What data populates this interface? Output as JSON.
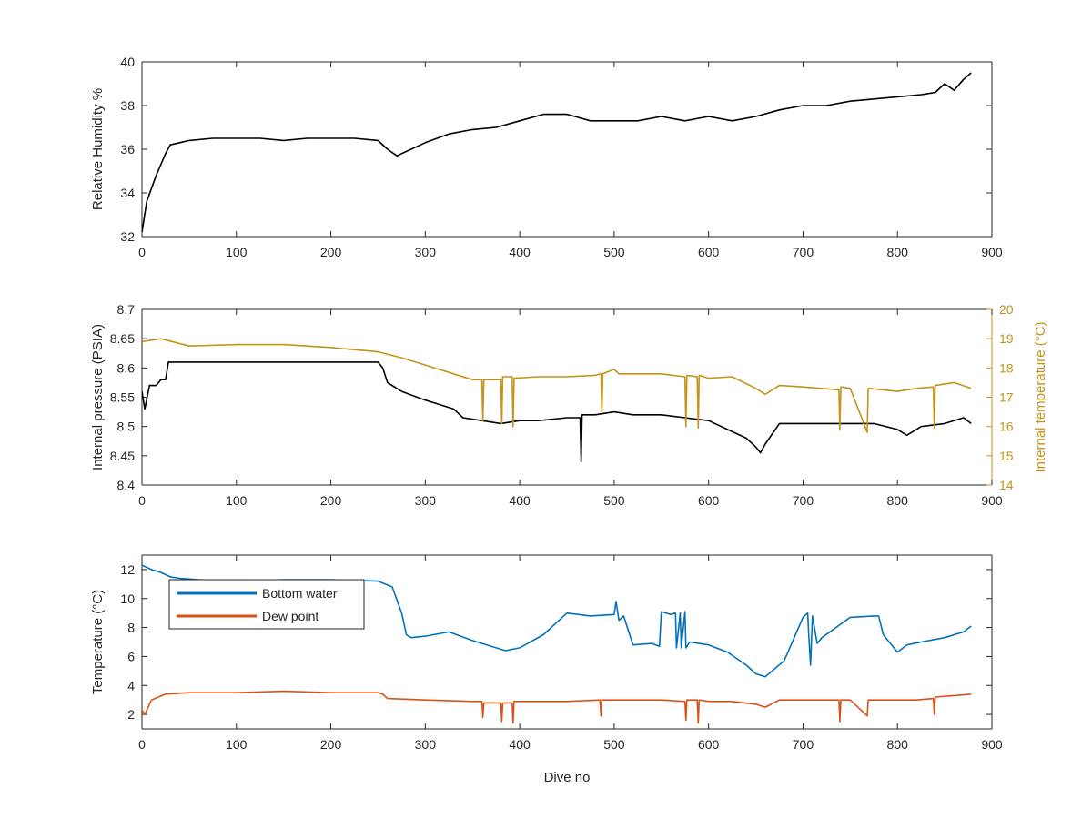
{
  "chart_data": [
    {
      "type": "line",
      "ylabel": "Relative Humidity %",
      "xlim": [
        0,
        900
      ],
      "ylim": [
        32,
        40
      ],
      "xticks": [
        0,
        100,
        200,
        300,
        400,
        500,
        600,
        700,
        800,
        900
      ],
      "yticks": [
        32,
        34,
        36,
        38,
        40
      ],
      "series": [
        {
          "color": "#000000",
          "x": [
            0,
            5,
            10,
            15,
            20,
            25,
            30,
            40,
            50,
            75,
            100,
            125,
            150,
            175,
            200,
            225,
            250,
            260,
            270,
            285,
            300,
            325,
            350,
            375,
            400,
            425,
            450,
            475,
            500,
            525,
            550,
            575,
            600,
            625,
            650,
            675,
            700,
            725,
            750,
            775,
            800,
            825,
            840,
            850,
            860,
            870,
            878
          ],
          "y": [
            32.2,
            33.6,
            34.2,
            34.8,
            35.3,
            35.8,
            36.2,
            36.3,
            36.4,
            36.5,
            36.5,
            36.5,
            36.4,
            36.5,
            36.5,
            36.5,
            36.4,
            36.0,
            35.7,
            36.0,
            36.3,
            36.7,
            36.9,
            37.0,
            37.3,
            37.6,
            37.6,
            37.3,
            37.3,
            37.3,
            37.5,
            37.3,
            37.5,
            37.3,
            37.5,
            37.8,
            38.0,
            38.0,
            38.2,
            38.3,
            38.4,
            38.5,
            38.6,
            39.0,
            38.7,
            39.2,
            39.5
          ]
        }
      ]
    },
    {
      "type": "line",
      "ylabel": "Internal pressure (PSIA)",
      "y2label": "Internal temperature (°C)",
      "xlim": [
        0,
        900
      ],
      "ylim": [
        8.4,
        8.7
      ],
      "y2lim": [
        14,
        20
      ],
      "xticks": [
        0,
        100,
        200,
        300,
        400,
        500,
        600,
        700,
        800,
        900
      ],
      "yticks": [
        8.4,
        8.45,
        8.5,
        8.55,
        8.6,
        8.65,
        8.7
      ],
      "yticklabels": [
        "8.4",
        "8.45",
        "8.5",
        "8.55",
        "8.6",
        "8.65",
        "8.7"
      ],
      "y2ticks": [
        14,
        15,
        16,
        17,
        18,
        19,
        20
      ],
      "series": [
        {
          "axis": "left",
          "color": "#000000",
          "x": [
            0,
            3,
            8,
            15,
            20,
            25,
            28,
            30,
            50,
            100,
            150,
            200,
            250,
            255,
            260,
            275,
            300,
            310,
            330,
            340,
            360,
            380,
            400,
            420,
            450,
            464,
            465,
            466,
            480,
            500,
            520,
            550,
            575,
            600,
            620,
            640,
            650,
            655,
            660,
            675,
            700,
            725,
            750,
            775,
            800,
            810,
            825,
            850,
            870,
            878
          ],
          "y": [
            8.56,
            8.53,
            8.57,
            8.57,
            8.58,
            8.58,
            8.61,
            8.61,
            8.61,
            8.61,
            8.61,
            8.61,
            8.61,
            8.6,
            8.575,
            8.56,
            8.545,
            8.54,
            8.53,
            8.515,
            8.51,
            8.505,
            8.51,
            8.51,
            8.515,
            8.515,
            8.44,
            8.52,
            8.52,
            8.525,
            8.52,
            8.52,
            8.515,
            8.51,
            8.495,
            8.48,
            8.465,
            8.455,
            8.47,
            8.505,
            8.505,
            8.505,
            8.505,
            8.505,
            8.495,
            8.485,
            8.5,
            8.505,
            8.515,
            8.505
          ]
        },
        {
          "axis": "right",
          "color": "#c59317",
          "x": [
            0,
            20,
            50,
            100,
            150,
            200,
            250,
            275,
            300,
            325,
            350,
            360,
            361,
            362,
            380,
            381,
            382,
            392,
            393,
            394,
            420,
            450,
            480,
            486,
            487,
            488,
            500,
            505,
            520,
            550,
            575,
            576,
            577,
            588,
            589,
            590,
            600,
            625,
            650,
            660,
            675,
            700,
            720,
            738,
            739,
            740,
            750,
            768,
            769,
            770,
            800,
            820,
            838,
            839,
            840,
            860,
            878
          ],
          "y": [
            18.9,
            19.0,
            18.75,
            18.8,
            18.8,
            18.7,
            18.55,
            18.35,
            18.1,
            17.85,
            17.6,
            17.6,
            16.2,
            17.6,
            17.6,
            16.1,
            17.7,
            17.7,
            16.0,
            17.65,
            17.7,
            17.7,
            17.75,
            17.8,
            16.5,
            17.8,
            17.95,
            17.8,
            17.8,
            17.8,
            17.7,
            16.0,
            17.75,
            17.7,
            15.95,
            17.75,
            17.65,
            17.7,
            17.3,
            17.1,
            17.4,
            17.35,
            17.3,
            17.25,
            15.9,
            17.35,
            17.3,
            15.8,
            17.3,
            17.3,
            17.2,
            17.3,
            17.35,
            15.95,
            17.4,
            17.5,
            17.3
          ]
        }
      ]
    },
    {
      "type": "line",
      "xlabel": "Dive no",
      "ylabel": "Temperature (°C)",
      "xlim": [
        0,
        900
      ],
      "ylim": [
        1,
        13
      ],
      "xticks": [
        0,
        100,
        200,
        300,
        400,
        500,
        600,
        700,
        800,
        900
      ],
      "yticks": [
        2,
        4,
        6,
        8,
        10,
        12
      ],
      "legend": "top-left",
      "series": [
        {
          "name": "Bottom water",
          "color": "#0072bd",
          "x": [
            0,
            10,
            20,
            30,
            40,
            60,
            100,
            150,
            200,
            250,
            265,
            275,
            280,
            285,
            300,
            325,
            350,
            375,
            385,
            400,
            425,
            450,
            475,
            500,
            502,
            505,
            510,
            520,
            540,
            548,
            550,
            560,
            565,
            566,
            570,
            571,
            575,
            576,
            580,
            600,
            620,
            640,
            650,
            660,
            680,
            700,
            705,
            706,
            708,
            710,
            715,
            720,
            750,
            775,
            780,
            785,
            795,
            800,
            810,
            825,
            850,
            870,
            878
          ],
          "y": [
            12.3,
            12.0,
            11.8,
            11.5,
            11.4,
            11.3,
            11.2,
            11.3,
            11.3,
            11.2,
            10.8,
            9.0,
            7.5,
            7.3,
            7.4,
            7.7,
            7.1,
            6.6,
            6.4,
            6.6,
            7.5,
            9.0,
            8.8,
            8.9,
            9.8,
            8.5,
            8.8,
            6.8,
            6.9,
            6.7,
            9.1,
            8.9,
            9.0,
            6.6,
            9.0,
            6.6,
            9.1,
            6.6,
            7.0,
            6.8,
            6.3,
            5.4,
            4.8,
            4.6,
            5.7,
            8.7,
            9.0,
            7.5,
            5.4,
            8.8,
            6.9,
            7.3,
            8.7,
            8.8,
            8.8,
            7.5,
            6.7,
            6.3,
            6.8,
            7.0,
            7.3,
            7.7,
            8.1
          ]
        },
        {
          "name": "Dew point",
          "color": "#d95319",
          "x": [
            0,
            3,
            10,
            25,
            50,
            100,
            150,
            200,
            250,
            255,
            260,
            300,
            350,
            360,
            361,
            362,
            380,
            381,
            382,
            392,
            393,
            394,
            420,
            450,
            485,
            486,
            487,
            500,
            550,
            575,
            576,
            577,
            588,
            589,
            590,
            600,
            625,
            650,
            660,
            675,
            700,
            725,
            738,
            739,
            740,
            750,
            768,
            769,
            770,
            800,
            820,
            838,
            839,
            840,
            860,
            878
          ],
          "y": [
            2.3,
            2.0,
            3.0,
            3.4,
            3.5,
            3.5,
            3.6,
            3.5,
            3.5,
            3.4,
            3.1,
            3.0,
            2.9,
            2.9,
            1.8,
            2.8,
            2.8,
            1.5,
            2.8,
            2.8,
            1.4,
            2.9,
            2.9,
            2.9,
            3.0,
            1.9,
            3.0,
            3.0,
            3.0,
            2.9,
            1.6,
            3.0,
            3.0,
            1.4,
            3.0,
            2.9,
            2.9,
            2.7,
            2.5,
            3.0,
            3.0,
            3.0,
            3.0,
            1.5,
            3.0,
            3.0,
            1.9,
            3.0,
            3.0,
            3.0,
            3.0,
            3.1,
            2.0,
            3.2,
            3.3,
            3.4
          ]
        }
      ]
    }
  ]
}
